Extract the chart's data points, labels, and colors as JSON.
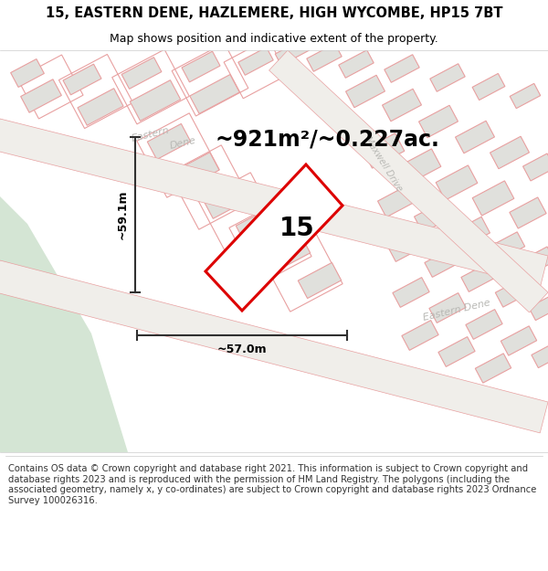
{
  "title_line1": "15, EASTERN DENE, HAZLEMERE, HIGH WYCOMBE, HP15 7BT",
  "title_line2": "Map shows position and indicative extent of the property.",
  "area_text": "~921m²/~0.227ac.",
  "property_number": "15",
  "width_label": "~57.0m",
  "height_label": "~59.1m",
  "footer_text": "Contains OS data © Crown copyright and database right 2021. This information is subject to Crown copyright and database rights 2023 and is reproduced with the permission of HM Land Registry. The polygons (including the associated geometry, namely x, y co-ordinates) are subject to Crown copyright and database rights 2023 Ordnance Survey 100026316.",
  "map_bg": "#f8f8f6",
  "green_color": "#d4e5d4",
  "plot_outline_color": "#dd0000",
  "building_fill": "#e0e0dc",
  "building_edge": "#c8c8c4",
  "parcel_edge": "#e8a0a0",
  "parcel_fill": "none",
  "road_edge": "#e8a0a0",
  "street_color": "#b8b8b4",
  "dim_color": "#303030",
  "title_fs": 10.5,
  "sub_fs": 9,
  "area_fs": 17,
  "num_fs": 20,
  "footer_fs": 7.2,
  "street_fs": 8
}
